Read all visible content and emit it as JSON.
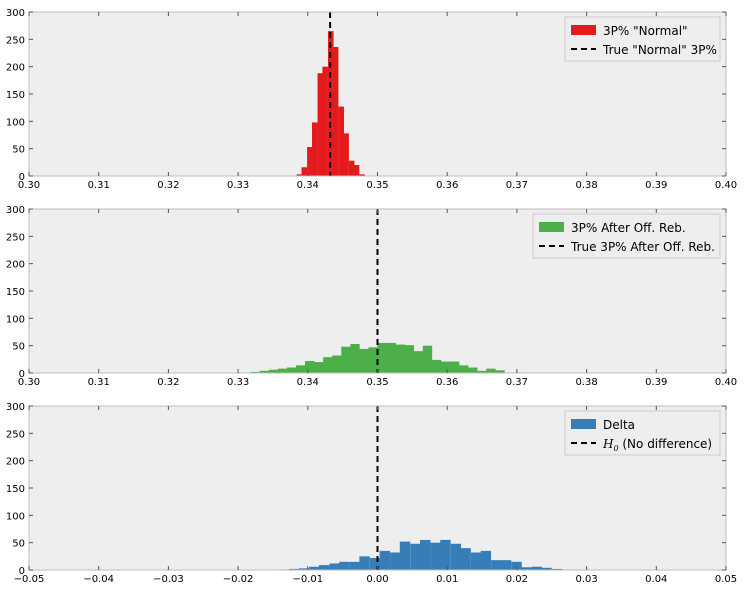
{
  "chart_data": [
    {
      "type": "bar",
      "subtype": "histogram",
      "xlim": [
        0.3,
        0.4
      ],
      "ylim": [
        0,
        300
      ],
      "xticks": [
        "0.30",
        "0.31",
        "0.32",
        "0.33",
        "0.34",
        "0.35",
        "0.36",
        "0.37",
        "0.38",
        "0.39",
        "0.40"
      ],
      "yticks": [
        "0",
        "50",
        "100",
        "150",
        "200",
        "250",
        "300"
      ],
      "bar_color": "#e41a1c",
      "bin_width": 0.00075,
      "series": [
        {
          "name": "3P% \"Normal\"",
          "x": [
            0.3384,
            0.3391,
            0.3399,
            0.3406,
            0.3414,
            0.3421,
            0.3429,
            0.3436,
            0.3444,
            0.3451,
            0.3459,
            0.3466,
            0.3474
          ],
          "values": [
            3,
            16,
            53,
            98,
            188,
            200,
            265,
            236,
            127,
            78,
            28,
            20,
            3
          ]
        }
      ],
      "reference_line": {
        "name": "True \"Normal\" 3P%",
        "x": 0.3432
      },
      "legend": {
        "position": "top-right"
      },
      "grid": false,
      "background": "#eeeeee"
    },
    {
      "type": "bar",
      "subtype": "histogram",
      "xlim": [
        0.3,
        0.4
      ],
      "ylim": [
        0,
        300
      ],
      "xticks": [
        "0.30",
        "0.31",
        "0.32",
        "0.33",
        "0.34",
        "0.35",
        "0.36",
        "0.37",
        "0.38",
        "0.39",
        "0.40"
      ],
      "yticks": [
        "0",
        "50",
        "100",
        "150",
        "200",
        "250",
        "300"
      ],
      "bar_color": "#4daf4a",
      "bin_width": 0.0013,
      "series": [
        {
          "name": "3P% After Off. Reb.",
          "x": [
            0.3318,
            0.3331,
            0.3344,
            0.3357,
            0.337,
            0.3383,
            0.3396,
            0.3409,
            0.3422,
            0.3435,
            0.3448,
            0.3461,
            0.3474,
            0.3487,
            0.35,
            0.3513,
            0.3526,
            0.3539,
            0.3552,
            0.3565,
            0.3578,
            0.3591,
            0.3604,
            0.3617,
            0.363,
            0.3643,
            0.3656,
            0.3669,
            0.3682,
            0.3695
          ],
          "values": [
            2,
            4,
            6,
            8,
            10,
            14,
            22,
            20,
            29,
            32,
            48,
            53,
            44,
            47,
            55,
            55,
            52,
            51,
            40,
            50,
            24,
            21,
            21,
            14,
            10,
            4,
            8,
            5,
            0,
            1
          ]
        }
      ],
      "reference_line": {
        "name": "True 3P% After Off. Reb.",
        "x": 0.35
      },
      "legend": {
        "position": "top-right"
      },
      "grid": false,
      "background": "#eeeeee"
    },
    {
      "type": "bar",
      "subtype": "histogram",
      "xlim": [
        -0.05,
        0.05
      ],
      "ylim": [
        0,
        300
      ],
      "xticks": [
        "−0.05",
        "−0.04",
        "−0.03",
        "−0.02",
        "−0.01",
        "0.00",
        "0.01",
        "0.02",
        "0.03",
        "0.04",
        "0.05"
      ],
      "yticks": [
        "0",
        "50",
        "100",
        "150",
        "200",
        "250",
        "300"
      ],
      "bar_color": "#377eb8",
      "bin_width": 0.00145,
      "series": [
        {
          "name": "Delta",
          "x": [
            -0.0142,
            -0.0127,
            -0.0113,
            -0.0098,
            -0.0084,
            -0.0069,
            -0.0055,
            -0.004,
            -0.0026,
            -0.0011,
            0.0003,
            0.0018,
            0.0032,
            0.0047,
            0.0061,
            0.0076,
            0.009,
            0.0105,
            0.0119,
            0.0134,
            0.0148,
            0.0163,
            0.0177,
            0.0192,
            0.0206,
            0.0221,
            0.0235,
            0.025,
            0.0264,
            0.0279
          ],
          "values": [
            1,
            2,
            3,
            6,
            9,
            12,
            15,
            15,
            25,
            22,
            35,
            32,
            52,
            48,
            55,
            50,
            55,
            48,
            40,
            32,
            35,
            18,
            18,
            15,
            5,
            6,
            4,
            2,
            1,
            0
          ]
        }
      ],
      "reference_line": {
        "name": "$H_0$ (No difference)",
        "x": 0.0,
        "display": {
          "main": "H",
          "sub": "0",
          "rest": " (No difference)"
        }
      },
      "legend": {
        "position": "top-right"
      },
      "grid": false,
      "background": "#eeeeee"
    }
  ]
}
